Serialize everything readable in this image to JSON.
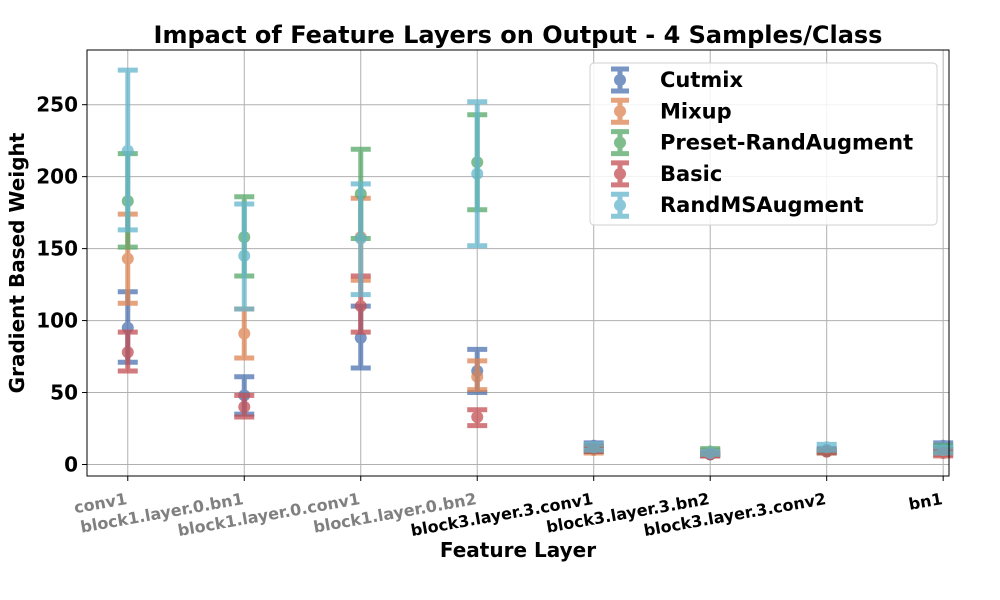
{
  "chart_data": {
    "type": "errorbar",
    "title": "Impact of Feature Layers on Output - 4 Samples/Class",
    "xlabel": "Feature Layer",
    "ylabel": "Gradient Based Weight",
    "ylim": [
      -8,
      288
    ],
    "yticks": [
      0,
      50,
      100,
      150,
      200,
      250
    ],
    "grid": true,
    "legend_position": "top-right",
    "categories": [
      "conv1",
      "block1.layer.0.bn1",
      "block1.layer.0.conv1",
      "block1.layer.0.bn2",
      "block3.layer.3.conv1",
      "block3.layer.3.bn2",
      "block3.layer.3.conv2",
      "bn1"
    ],
    "category_label_colors": [
      "#808080",
      "#808080",
      "#808080",
      "#808080",
      "#000000",
      "#000000",
      "#000000",
      "#000000"
    ],
    "series": [
      {
        "name": "Cutmix",
        "color": "#4c72b0",
        "values": [
          95,
          48,
          88,
          65,
          13,
          7,
          10,
          13
        ],
        "lower": [
          71,
          35,
          67,
          50,
          11,
          6,
          9,
          11
        ],
        "upper": [
          120,
          61,
          110,
          80,
          15,
          8,
          11,
          15
        ]
      },
      {
        "name": "Mixup",
        "color": "#dd8452",
        "values": [
          143,
          91,
          158,
          61,
          10,
          8,
          9,
          9
        ],
        "lower": [
          112,
          74,
          128,
          52,
          8,
          6,
          8,
          7
        ],
        "upper": [
          174,
          108,
          185,
          72,
          12,
          10,
          10,
          11
        ]
      },
      {
        "name": "Preset-RandAugment",
        "color": "#55a868",
        "values": [
          183,
          158,
          188,
          210,
          11,
          9,
          9,
          11
        ],
        "lower": [
          151,
          131,
          157,
          177,
          9,
          7,
          8,
          9
        ],
        "upper": [
          216,
          186,
          219,
          243,
          13,
          11,
          10,
          13
        ]
      },
      {
        "name": "Basic",
        "color": "#c44e52",
        "values": [
          78,
          40,
          110,
          33,
          11,
          7,
          9,
          8
        ],
        "lower": [
          65,
          33,
          92,
          27,
          9,
          6,
          8,
          6
        ],
        "upper": [
          92,
          48,
          131,
          38,
          13,
          8,
          10,
          10
        ]
      },
      {
        "name": "RandMSAugment",
        "color": "#64b5cd",
        "values": [
          218,
          145,
          157,
          202,
          12,
          8,
          12,
          10
        ],
        "lower": [
          163,
          108,
          118,
          152,
          10,
          7,
          10,
          8
        ],
        "upper": [
          274,
          181,
          195,
          252,
          14,
          9,
          14,
          12
        ]
      }
    ]
  }
}
